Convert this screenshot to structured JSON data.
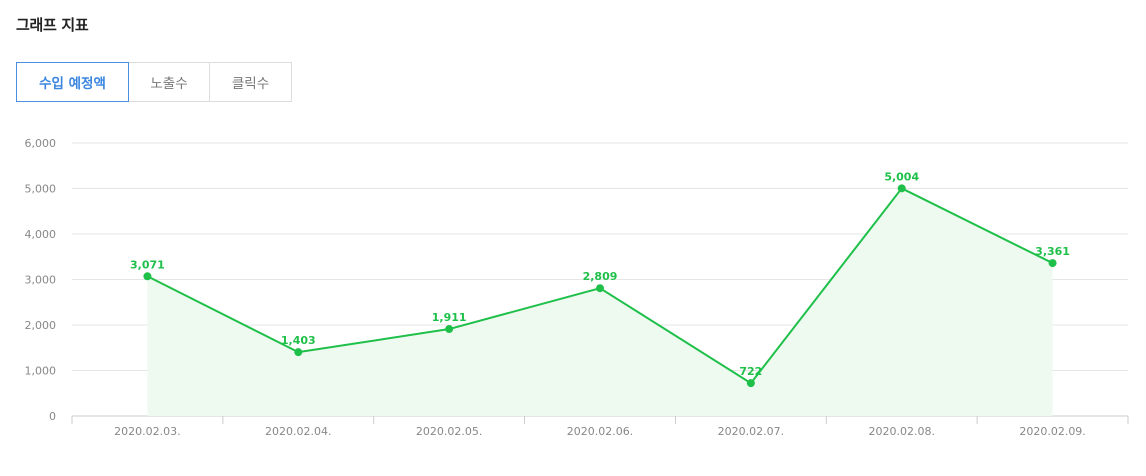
{
  "header": {
    "title": "그래프 지표"
  },
  "tabs": [
    {
      "label": "수입 예정액",
      "active": true
    },
    {
      "label": "노출수",
      "active": false
    },
    {
      "label": "클릭수",
      "active": false
    }
  ],
  "colors": {
    "line": "#1fc04a",
    "fill": "#eef9ef",
    "active_tab": "#4a90e2",
    "grid": "#e6e6e6",
    "axis_text": "#888888"
  },
  "chart_data": {
    "type": "area",
    "categories": [
      "2020.02.03.",
      "2020.02.04.",
      "2020.02.05.",
      "2020.02.06.",
      "2020.02.07.",
      "2020.02.08.",
      "2020.02.09."
    ],
    "values": [
      3071,
      1403,
      1911,
      2809,
      722,
      5004,
      3361
    ],
    "value_labels": [
      "3,071",
      "1,403",
      "1,911",
      "2,809",
      "722",
      "5,004",
      "3,361"
    ],
    "y_ticks": [
      0,
      1000,
      2000,
      3000,
      4000,
      5000,
      6000
    ],
    "y_tick_labels": [
      "0",
      "1,000",
      "2,000",
      "3,000",
      "4,000",
      "5,000",
      "6,000"
    ],
    "ylim": [
      0,
      6000
    ],
    "grid": true,
    "legend": "none"
  }
}
